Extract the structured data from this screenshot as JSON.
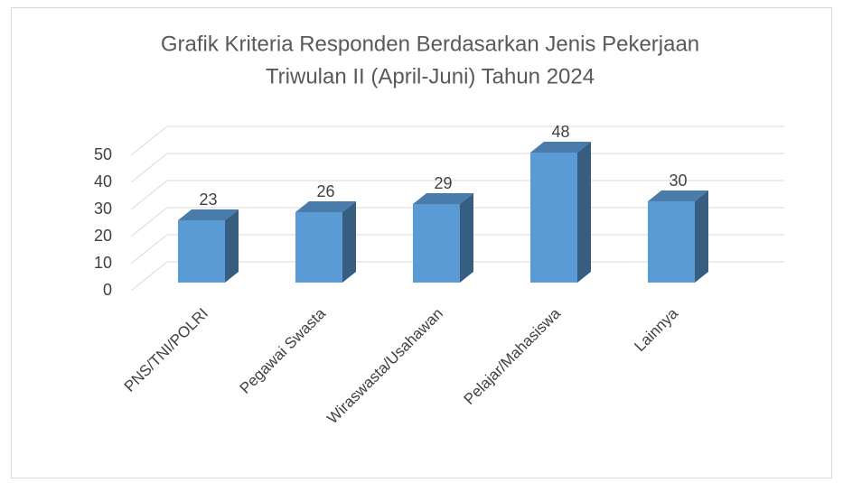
{
  "chart_data": {
    "type": "bar3d",
    "title": [
      "Grafik Kriteria Responden Berdasarkan Jenis Pekerjaan",
      "Triwulan II (April-Juni) Tahun 2024"
    ],
    "categories": [
      "PNS/TNI/POLRI",
      "Pegawai Swasta",
      "Wiraswasta/Usahawan",
      "Pelajar/Mahasiswa",
      "Lainnya"
    ],
    "values": [
      23,
      26,
      29,
      48,
      30
    ],
    "color": "#5b9bd5",
    "ylim": [
      0,
      50
    ],
    "yticks": [
      0,
      10,
      20,
      30,
      40,
      50
    ],
    "grid": true
  }
}
